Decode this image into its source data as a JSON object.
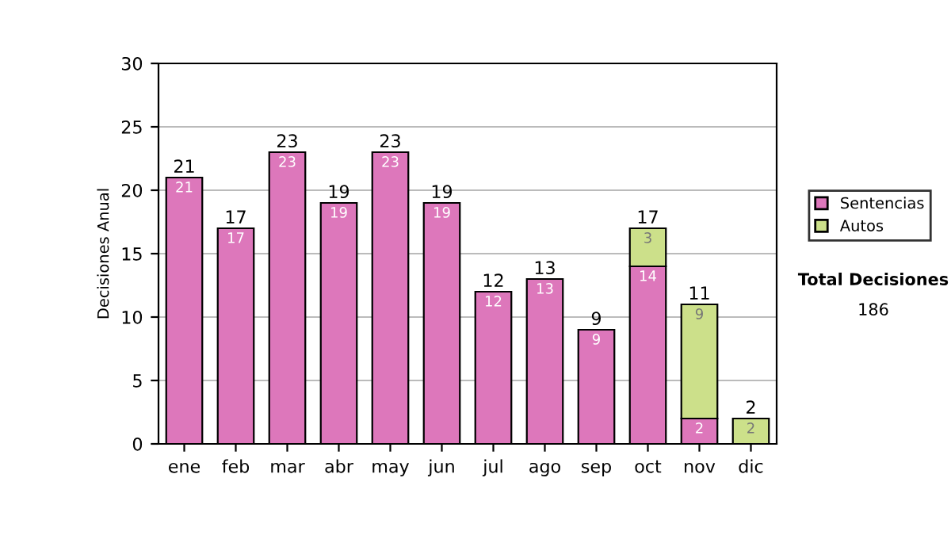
{
  "chart_data": {
    "type": "bar",
    "stacked": true,
    "ylabel": "Decisiones Anual",
    "categories": [
      "ene",
      "feb",
      "mar",
      "abr",
      "may",
      "jun",
      "jul",
      "ago",
      "sep",
      "oct",
      "nov",
      "dic"
    ],
    "series": [
      {
        "name": "Sentencias",
        "color": "#dd77bb",
        "values": [
          21,
          17,
          23,
          19,
          23,
          19,
          12,
          13,
          9,
          14,
          2,
          0
        ],
        "value_labels": [
          "21",
          "17",
          "23",
          "19",
          "23",
          "19",
          "12",
          "13",
          "9",
          "14",
          "2",
          null
        ]
      },
      {
        "name": "Autos",
        "color": "#cce08a",
        "values": [
          0,
          0,
          0,
          0,
          0,
          0,
          0,
          0,
          0,
          3,
          9,
          2
        ],
        "value_labels": [
          null,
          null,
          null,
          null,
          null,
          null,
          null,
          null,
          null,
          "3",
          "9",
          "2"
        ]
      }
    ],
    "totals": [
      "21",
      "17",
      "23",
      "19",
      "23",
      "19",
      "12",
      "13",
      "9",
      "17",
      "11",
      "2"
    ],
    "ylim": [
      0,
      30
    ],
    "yticks": [
      0,
      5,
      10,
      15,
      20,
      25,
      30
    ],
    "grid": "y",
    "legend": "right",
    "annotations": [
      "Total Decisiones",
      "186"
    ]
  }
}
